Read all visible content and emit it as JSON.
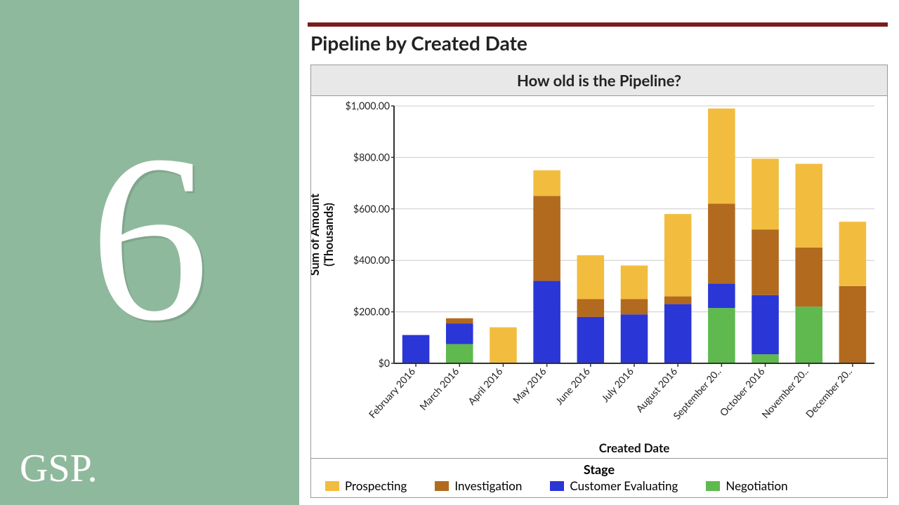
{
  "left_panel": {
    "bg_color": "#8fb99d",
    "number": "6",
    "logo_text": "GSP."
  },
  "header": {
    "bar_color": "#7a1d1d",
    "title": "Pipeline by Created Date"
  },
  "chart": {
    "type": "stacked-bar",
    "title": "How old is the Pipeline?",
    "header_bg": "#e8e8e8",
    "plot_bg": "#ffffff",
    "border_color": "#999999",
    "ylabel": "Sum of Amount\n(Thousands)",
    "xlabel": "Created Date",
    "y_ticks": [
      "$0",
      "$200.00",
      "$400.00",
      "$600.00",
      "$800.00",
      "$1,000.00"
    ],
    "y_values": [
      0,
      200,
      400,
      600,
      800,
      1000
    ],
    "ymax": 1000,
    "grid_color": "#cccccc",
    "axis_color": "#333333",
    "bar_width_ratio": 0.62,
    "categories": [
      "February 2016",
      "March 2016",
      "April 2016",
      "May 2016",
      "June 2016",
      "July 2016",
      "August 2016",
      "September 20..",
      "October 2016",
      "November 20..",
      "December 20.."
    ],
    "stack_order": [
      "negotiation",
      "customer_evaluating",
      "investigation",
      "prospecting"
    ],
    "series": {
      "prospecting": {
        "label": "Prospecting",
        "color": "#f2bd3f",
        "values": [
          0,
          0,
          140,
          100,
          170,
          130,
          320,
          370,
          275,
          325,
          250
        ]
      },
      "investigation": {
        "label": "Investigation",
        "color": "#b26a1f",
        "values": [
          0,
          20,
          0,
          330,
          70,
          60,
          30,
          310,
          255,
          230,
          300
        ]
      },
      "customer_evaluating": {
        "label": "Customer Evaluating",
        "color": "#2a36d6",
        "values": [
          110,
          80,
          0,
          320,
          180,
          190,
          230,
          95,
          230,
          0,
          0
        ]
      },
      "negotiation": {
        "label": "Negotiation",
        "color": "#5fb94f",
        "values": [
          0,
          75,
          0,
          0,
          0,
          0,
          0,
          215,
          35,
          220,
          0
        ]
      }
    },
    "legend": {
      "title": "Stage",
      "order": [
        "prospecting",
        "investigation",
        "customer_evaluating",
        "negotiation"
      ]
    },
    "tick_fontsize": 14,
    "label_fontsize": 17
  }
}
